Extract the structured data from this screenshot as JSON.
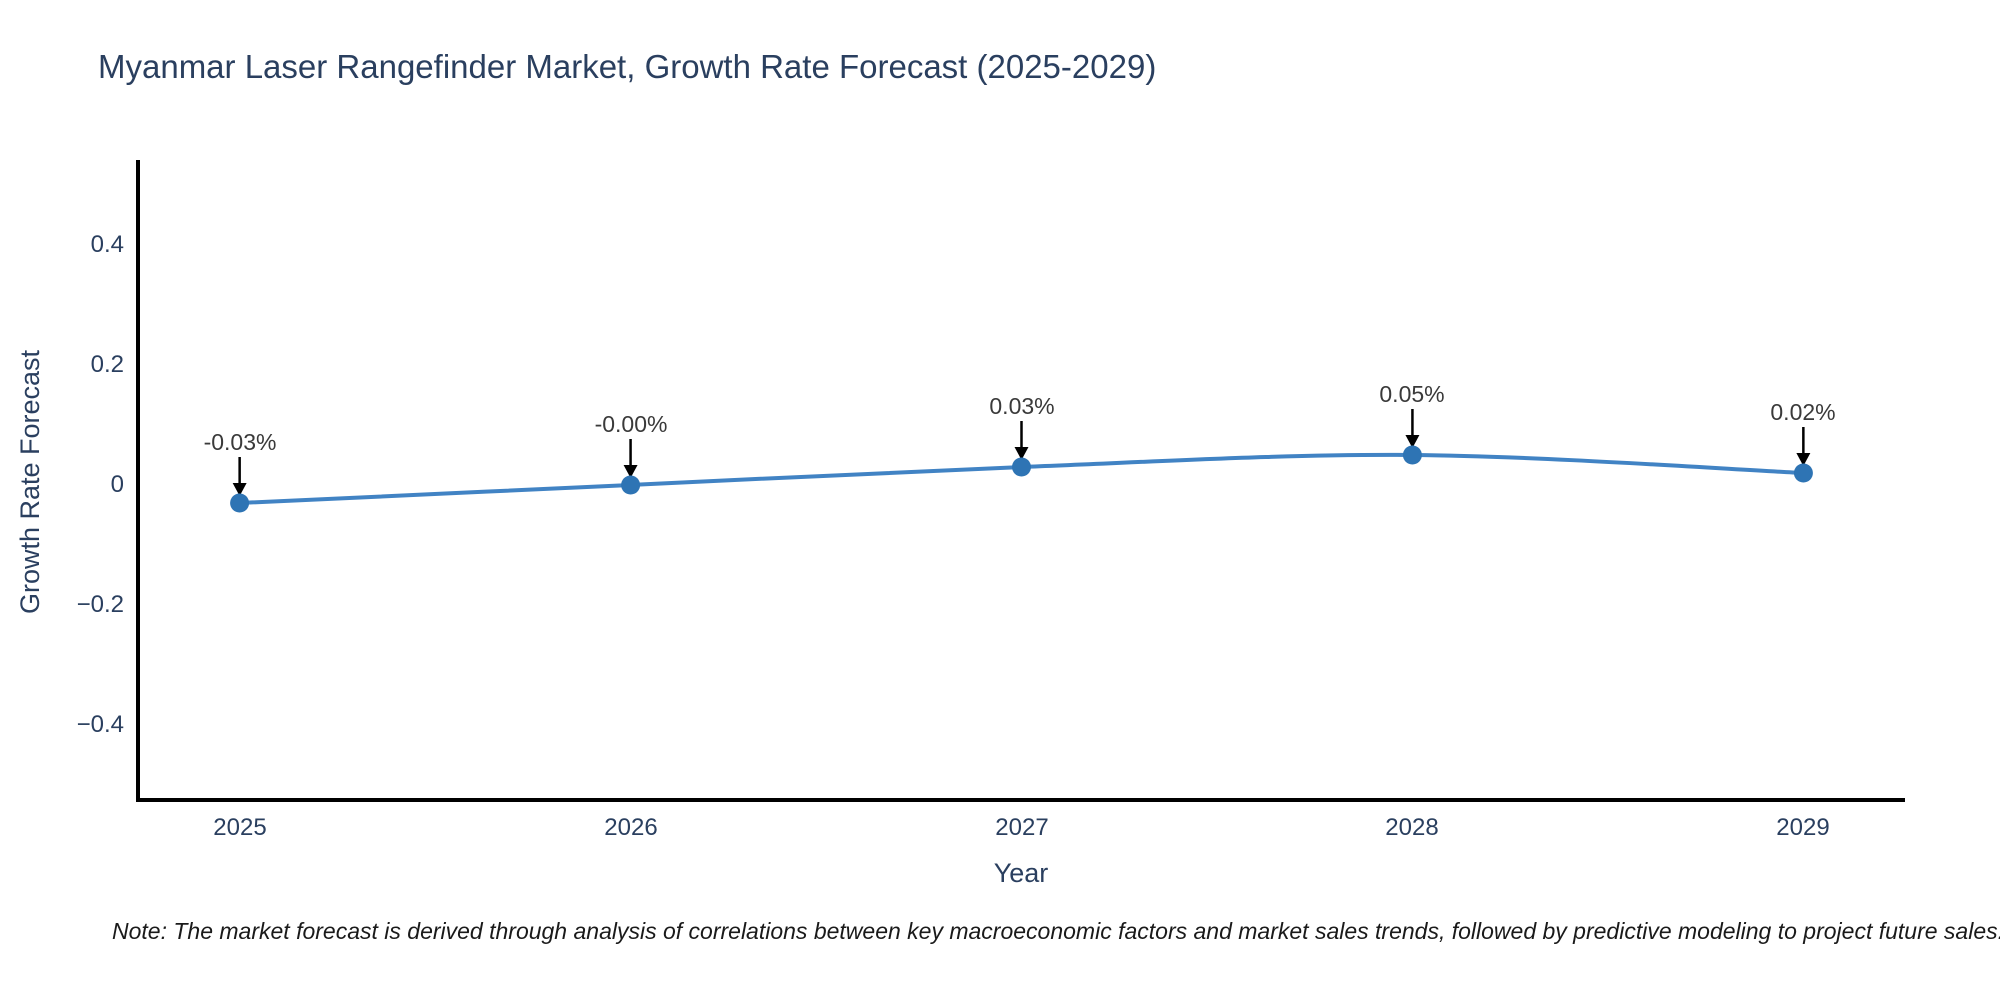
{
  "note": "Note: The market forecast is derived through analysis of correlations between key macroeconomic factors and market sales trends, followed by predictive modeling to project future sales.",
  "chart_data": {
    "type": "line",
    "title": "Myanmar Laser Rangefinder Market, Growth Rate Forecast (2025-2029)",
    "xlabel": "Year",
    "ylabel": "Growth Rate Forecast",
    "x": [
      2025,
      2026,
      2027,
      2028,
      2029
    ],
    "y": [
      -0.03,
      -0.0,
      0.03,
      0.05,
      0.02
    ],
    "series_name": "Growth Rate Forecast",
    "point_labels": [
      "-0.03%",
      "-0.00%",
      "0.03%",
      "0.05%",
      "0.02%"
    ],
    "x_tick_labels": [
      "2025",
      "2026",
      "2027",
      "2028",
      "2029"
    ],
    "y_tick_labels": [
      "0.4",
      "0.2",
      "0",
      "−0.2",
      "−0.4"
    ],
    "y_tick_values": [
      0.4,
      0.2,
      0,
      -0.2,
      -0.4
    ],
    "xlim": [
      2024.74,
      2029.26
    ],
    "ylim": [
      -0.53,
      0.53
    ],
    "line_shape": "spline",
    "grid": false,
    "legend_position": "none",
    "colors": {
      "line": "#4183c4",
      "marker": "#2e74b4",
      "axis": "#000000",
      "arrow": "#000000",
      "tick_text": "#2a3f5f",
      "title_text": "#2a3f5f",
      "annotation_text": "#3a3a3a",
      "note_text": "#1a1a1a",
      "background": "#ffffff"
    }
  }
}
